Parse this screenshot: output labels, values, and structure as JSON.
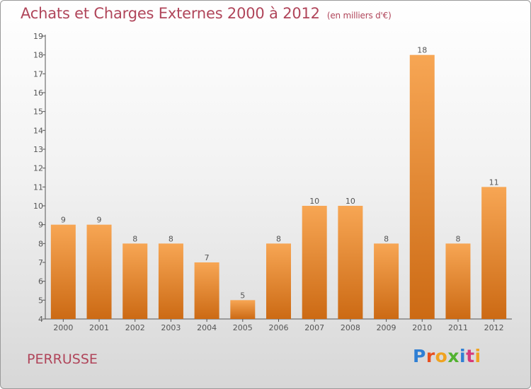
{
  "header": {
    "title": "Achats et Charges Externes 2000 à 2012",
    "subtitle": "(en milliers d'€)"
  },
  "footer": {
    "city": "PERRUSSE",
    "logo_letters": [
      "P",
      "r",
      "o",
      "x",
      "i",
      "t",
      "i"
    ]
  },
  "colors": {
    "bar_top": "#f7a654",
    "bar_bottom": "#cc6a14",
    "title": "#b0455a",
    "axis": "#555555"
  },
  "chart_data": {
    "type": "bar",
    "title": "Achats et Charges Externes 2000 à 2012",
    "subtitle": "(en milliers d'€)",
    "categories": [
      "2000",
      "2001",
      "2002",
      "2003",
      "2004",
      "2005",
      "2006",
      "2007",
      "2008",
      "2009",
      "2010",
      "2011",
      "2012"
    ],
    "values": [
      9,
      9,
      8,
      8,
      7,
      5,
      8,
      10,
      10,
      8,
      18,
      8,
      11
    ],
    "ylim": [
      4,
      19
    ],
    "yticks": [
      4,
      5,
      6,
      7,
      8,
      9,
      10,
      11,
      12,
      13,
      14,
      15,
      16,
      17,
      18,
      19
    ],
    "grid": false,
    "legend": "none"
  }
}
